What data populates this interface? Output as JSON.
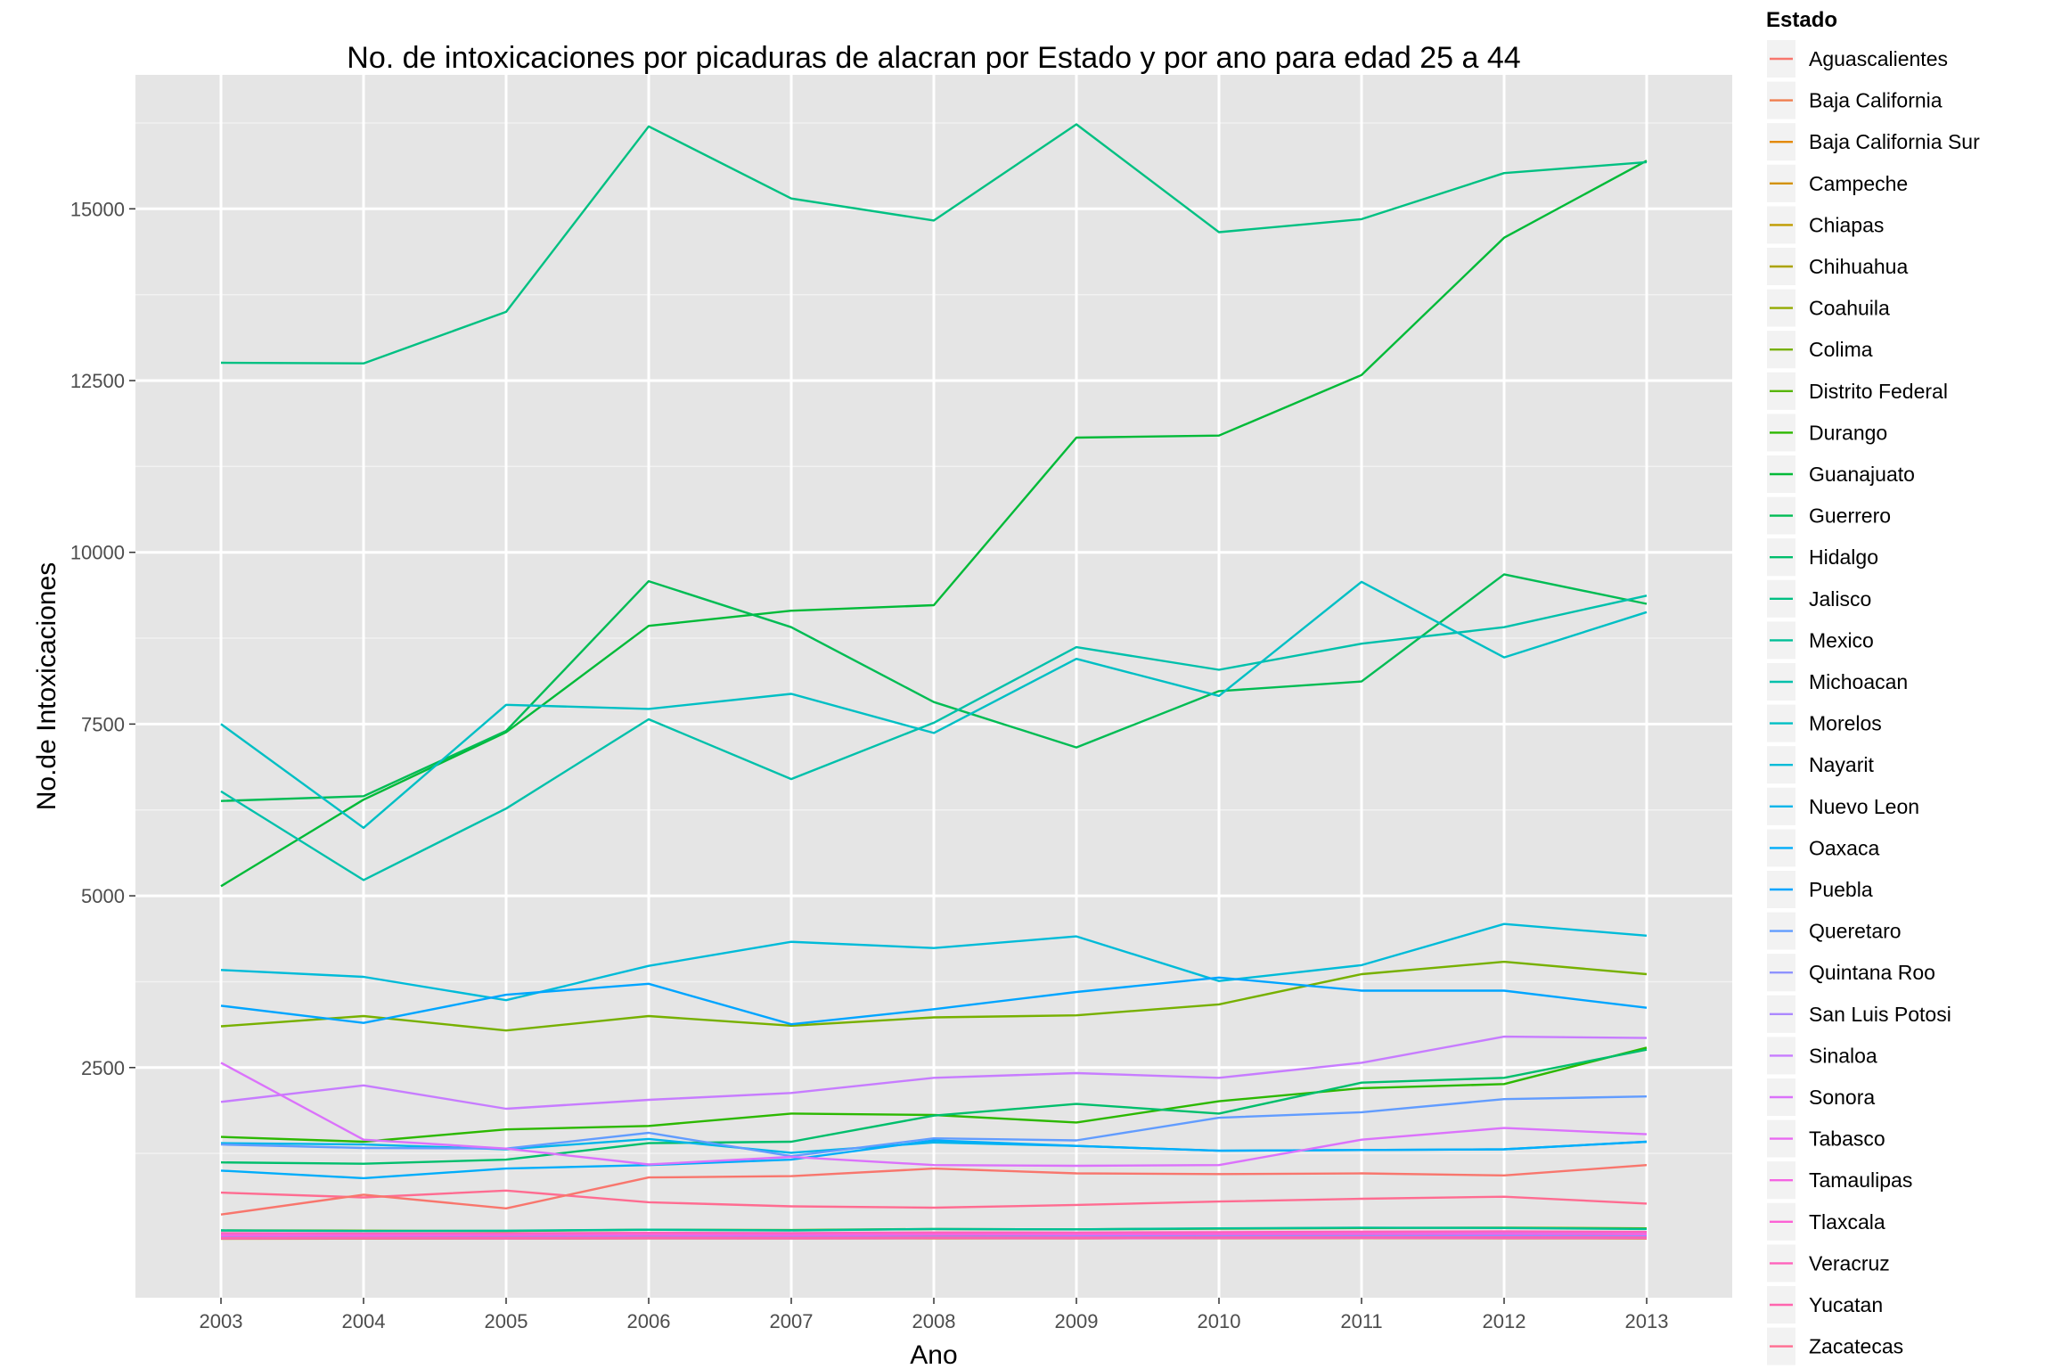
{
  "chart_data": {
    "type": "line",
    "title": "No. de intoxicaciones por picaduras de alacran por Estado y por ano para edad 25 a 44",
    "xlabel": "Ano",
    "ylabel": "No.de Intoxicaciones",
    "x": [
      2003,
      2004,
      2005,
      2006,
      2007,
      2008,
      2009,
      2010,
      2011,
      2012,
      2013
    ],
    "x_tick_labels": [
      "2003",
      "2004",
      "2005",
      "2006",
      "2007",
      "2008",
      "2009",
      "2010",
      "2011",
      "2012",
      "2013"
    ],
    "y_ticks": [
      2500,
      5000,
      7500,
      10000,
      12500,
      15000
    ],
    "y_tick_labels": [
      "2500",
      "5000",
      "7500",
      "10000",
      "12500",
      "15000"
    ],
    "xlim": [
      2002.4,
      2013.6
    ],
    "ylim": [
      -850,
      16950
    ],
    "grid": true,
    "legend": {
      "title": "Estado",
      "position": "right"
    },
    "series": [
      {
        "name": "Aguascalientes",
        "color": "#F8766D",
        "values": [
          10,
          12,
          11,
          14,
          13,
          15,
          14,
          15,
          16,
          14,
          13
        ]
      },
      {
        "name": "Baja California",
        "color": "#F07E4E",
        "values": [
          60,
          55,
          58,
          70,
          65,
          72,
          68,
          75,
          80,
          78,
          70
        ]
      },
      {
        "name": "Baja California Sur",
        "color": "#E38900",
        "values": [
          40,
          42,
          45,
          50,
          48,
          52,
          50,
          55,
          58,
          60,
          55
        ]
      },
      {
        "name": "Campeche",
        "color": "#D39200",
        "values": [
          8,
          9,
          10,
          12,
          11,
          12,
          13,
          14,
          15,
          14,
          13
        ]
      },
      {
        "name": "Chiapas",
        "color": "#C09B00",
        "values": [
          15,
          18,
          16,
          20,
          19,
          22,
          21,
          23,
          25,
          24,
          22
        ]
      },
      {
        "name": "Chihuahua",
        "color": "#ABA300",
        "values": [
          50,
          55,
          52,
          58,
          60,
          62,
          64,
          66,
          70,
          72,
          68
        ]
      },
      {
        "name": "Coahuila",
        "color": "#93AA00",
        "values": [
          25,
          28,
          27,
          30,
          32,
          33,
          34,
          36,
          38,
          40,
          37
        ]
      },
      {
        "name": "Colima",
        "color": "#77B000",
        "values": [
          3100,
          3250,
          3040,
          3250,
          3110,
          3230,
          3260,
          3420,
          3860,
          4040,
          3860
        ]
      },
      {
        "name": "Distrito Federal",
        "color": "#56B500",
        "values": [
          130,
          125,
          120,
          140,
          135,
          150,
          145,
          155,
          165,
          170,
          160
        ]
      },
      {
        "name": "Durango",
        "color": "#2CB800",
        "values": [
          1490,
          1420,
          1600,
          1650,
          1830,
          1810,
          1700,
          2010,
          2200,
          2260,
          2790
        ]
      },
      {
        "name": "Guanajuato",
        "color": "#00BA38",
        "values": [
          5140,
          6400,
          7380,
          8930,
          9150,
          9230,
          11670,
          11700,
          12580,
          14580,
          15700
        ]
      },
      {
        "name": "Guerrero",
        "color": "#00BC54",
        "values": [
          6380,
          6450,
          7400,
          9580,
          8910,
          7820,
          7160,
          7980,
          8120,
          9680,
          9250
        ]
      },
      {
        "name": "Hidalgo",
        "color": "#00BE6C",
        "values": [
          1120,
          1100,
          1160,
          1400,
          1420,
          1800,
          1970,
          1830,
          2280,
          2350,
          2760
        ]
      },
      {
        "name": "Jalisco",
        "color": "#00C082",
        "values": [
          12760,
          12750,
          13500,
          16200,
          15150,
          14830,
          16230,
          14660,
          14850,
          15520,
          15680
        ]
      },
      {
        "name": "Mexico",
        "color": "#00C097",
        "values": [
          130,
          120,
          125,
          140,
          130,
          150,
          145,
          160,
          170,
          165,
          150
        ]
      },
      {
        "name": "Michoacan",
        "color": "#00C0AB",
        "values": [
          6520,
          5230,
          6270,
          7570,
          6700,
          7520,
          8620,
          8290,
          8670,
          8910,
          9370
        ]
      },
      {
        "name": "Morelos",
        "color": "#00BFC4",
        "values": [
          7500,
          5990,
          7780,
          7720,
          7940,
          7370,
          8450,
          7910,
          9570,
          8470,
          9130
        ]
      },
      {
        "name": "Nayarit",
        "color": "#00BBD8",
        "values": [
          3920,
          3820,
          3480,
          3980,
          4330,
          4240,
          4410,
          3760,
          3990,
          4590,
          4420
        ]
      },
      {
        "name": "Nuevo Leon",
        "color": "#00B5EA",
        "values": [
          1400,
          1380,
          1310,
          1460,
          1260,
          1410,
          1360,
          1290,
          1300,
          1310,
          1420
        ]
      },
      {
        "name": "Oaxaca",
        "color": "#00ADFA",
        "values": [
          1000,
          890,
          1030,
          1080,
          1160,
          1440,
          1360,
          1290,
          1300,
          1310,
          1420
        ]
      },
      {
        "name": "Puebla",
        "color": "#00A5FF",
        "values": [
          3400,
          3150,
          3560,
          3720,
          3130,
          3350,
          3600,
          3810,
          3620,
          3620,
          3370
        ]
      },
      {
        "name": "Queretaro",
        "color": "#619CFF",
        "values": [
          1380,
          1330,
          1320,
          1550,
          1210,
          1470,
          1440,
          1770,
          1850,
          2040,
          2080
        ]
      },
      {
        "name": "Quintana Roo",
        "color": "#8E92FF",
        "values": [
          30,
          32,
          35,
          38,
          36,
          40,
          42,
          45,
          48,
          50,
          46
        ]
      },
      {
        "name": "San Luis Potosi",
        "color": "#AC88FF",
        "values": [
          80,
          75,
          78,
          85,
          82,
          90,
          88,
          92,
          95,
          98,
          90
        ]
      },
      {
        "name": "Sinaloa",
        "color": "#C77CFF",
        "values": [
          2000,
          2240,
          1900,
          2030,
          2130,
          2350,
          2420,
          2350,
          2570,
          2950,
          2930
        ]
      },
      {
        "name": "Sonora",
        "color": "#DB72FB",
        "values": [
          2570,
          1450,
          1320,
          1090,
          1200,
          1080,
          1070,
          1080,
          1450,
          1620,
          1530
        ]
      },
      {
        "name": "Tabasco",
        "color": "#EA6AF1",
        "values": [
          12,
          14,
          13,
          15,
          14,
          16,
          15,
          17,
          18,
          17,
          16
        ]
      },
      {
        "name": "Tamaulipas",
        "color": "#F564E3",
        "values": [
          60,
          58,
          62,
          68,
          65,
          70,
          72,
          75,
          78,
          80,
          74
        ]
      },
      {
        "name": "Tlaxcala",
        "color": "#FC61D5",
        "values": [
          20,
          22,
          21,
          24,
          23,
          25,
          26,
          27,
          28,
          29,
          27
        ]
      },
      {
        "name": "Veracruz",
        "color": "#FF62BC",
        "values": [
          90,
          85,
          88,
          95,
          92,
          100,
          98,
          105,
          110,
          115,
          108
        ]
      },
      {
        "name": "Yucatan",
        "color": "#FF65AE",
        "values": [
          18,
          20,
          19,
          22,
          21,
          23,
          22,
          24,
          25,
          26,
          24
        ]
      },
      {
        "name": "Zacatecas",
        "color": "#FF6C91",
        "values": [
          680,
          610,
          710,
          540,
          480,
          460,
          500,
          550,
          590,
          620,
          520
        ]
      },
      {
        "name": "",
        "color": "#F8766D",
        "values": [
          360,
          650,
          450,
          900,
          920,
          1030,
          960,
          950,
          960,
          930,
          1080
        ]
      }
    ]
  }
}
